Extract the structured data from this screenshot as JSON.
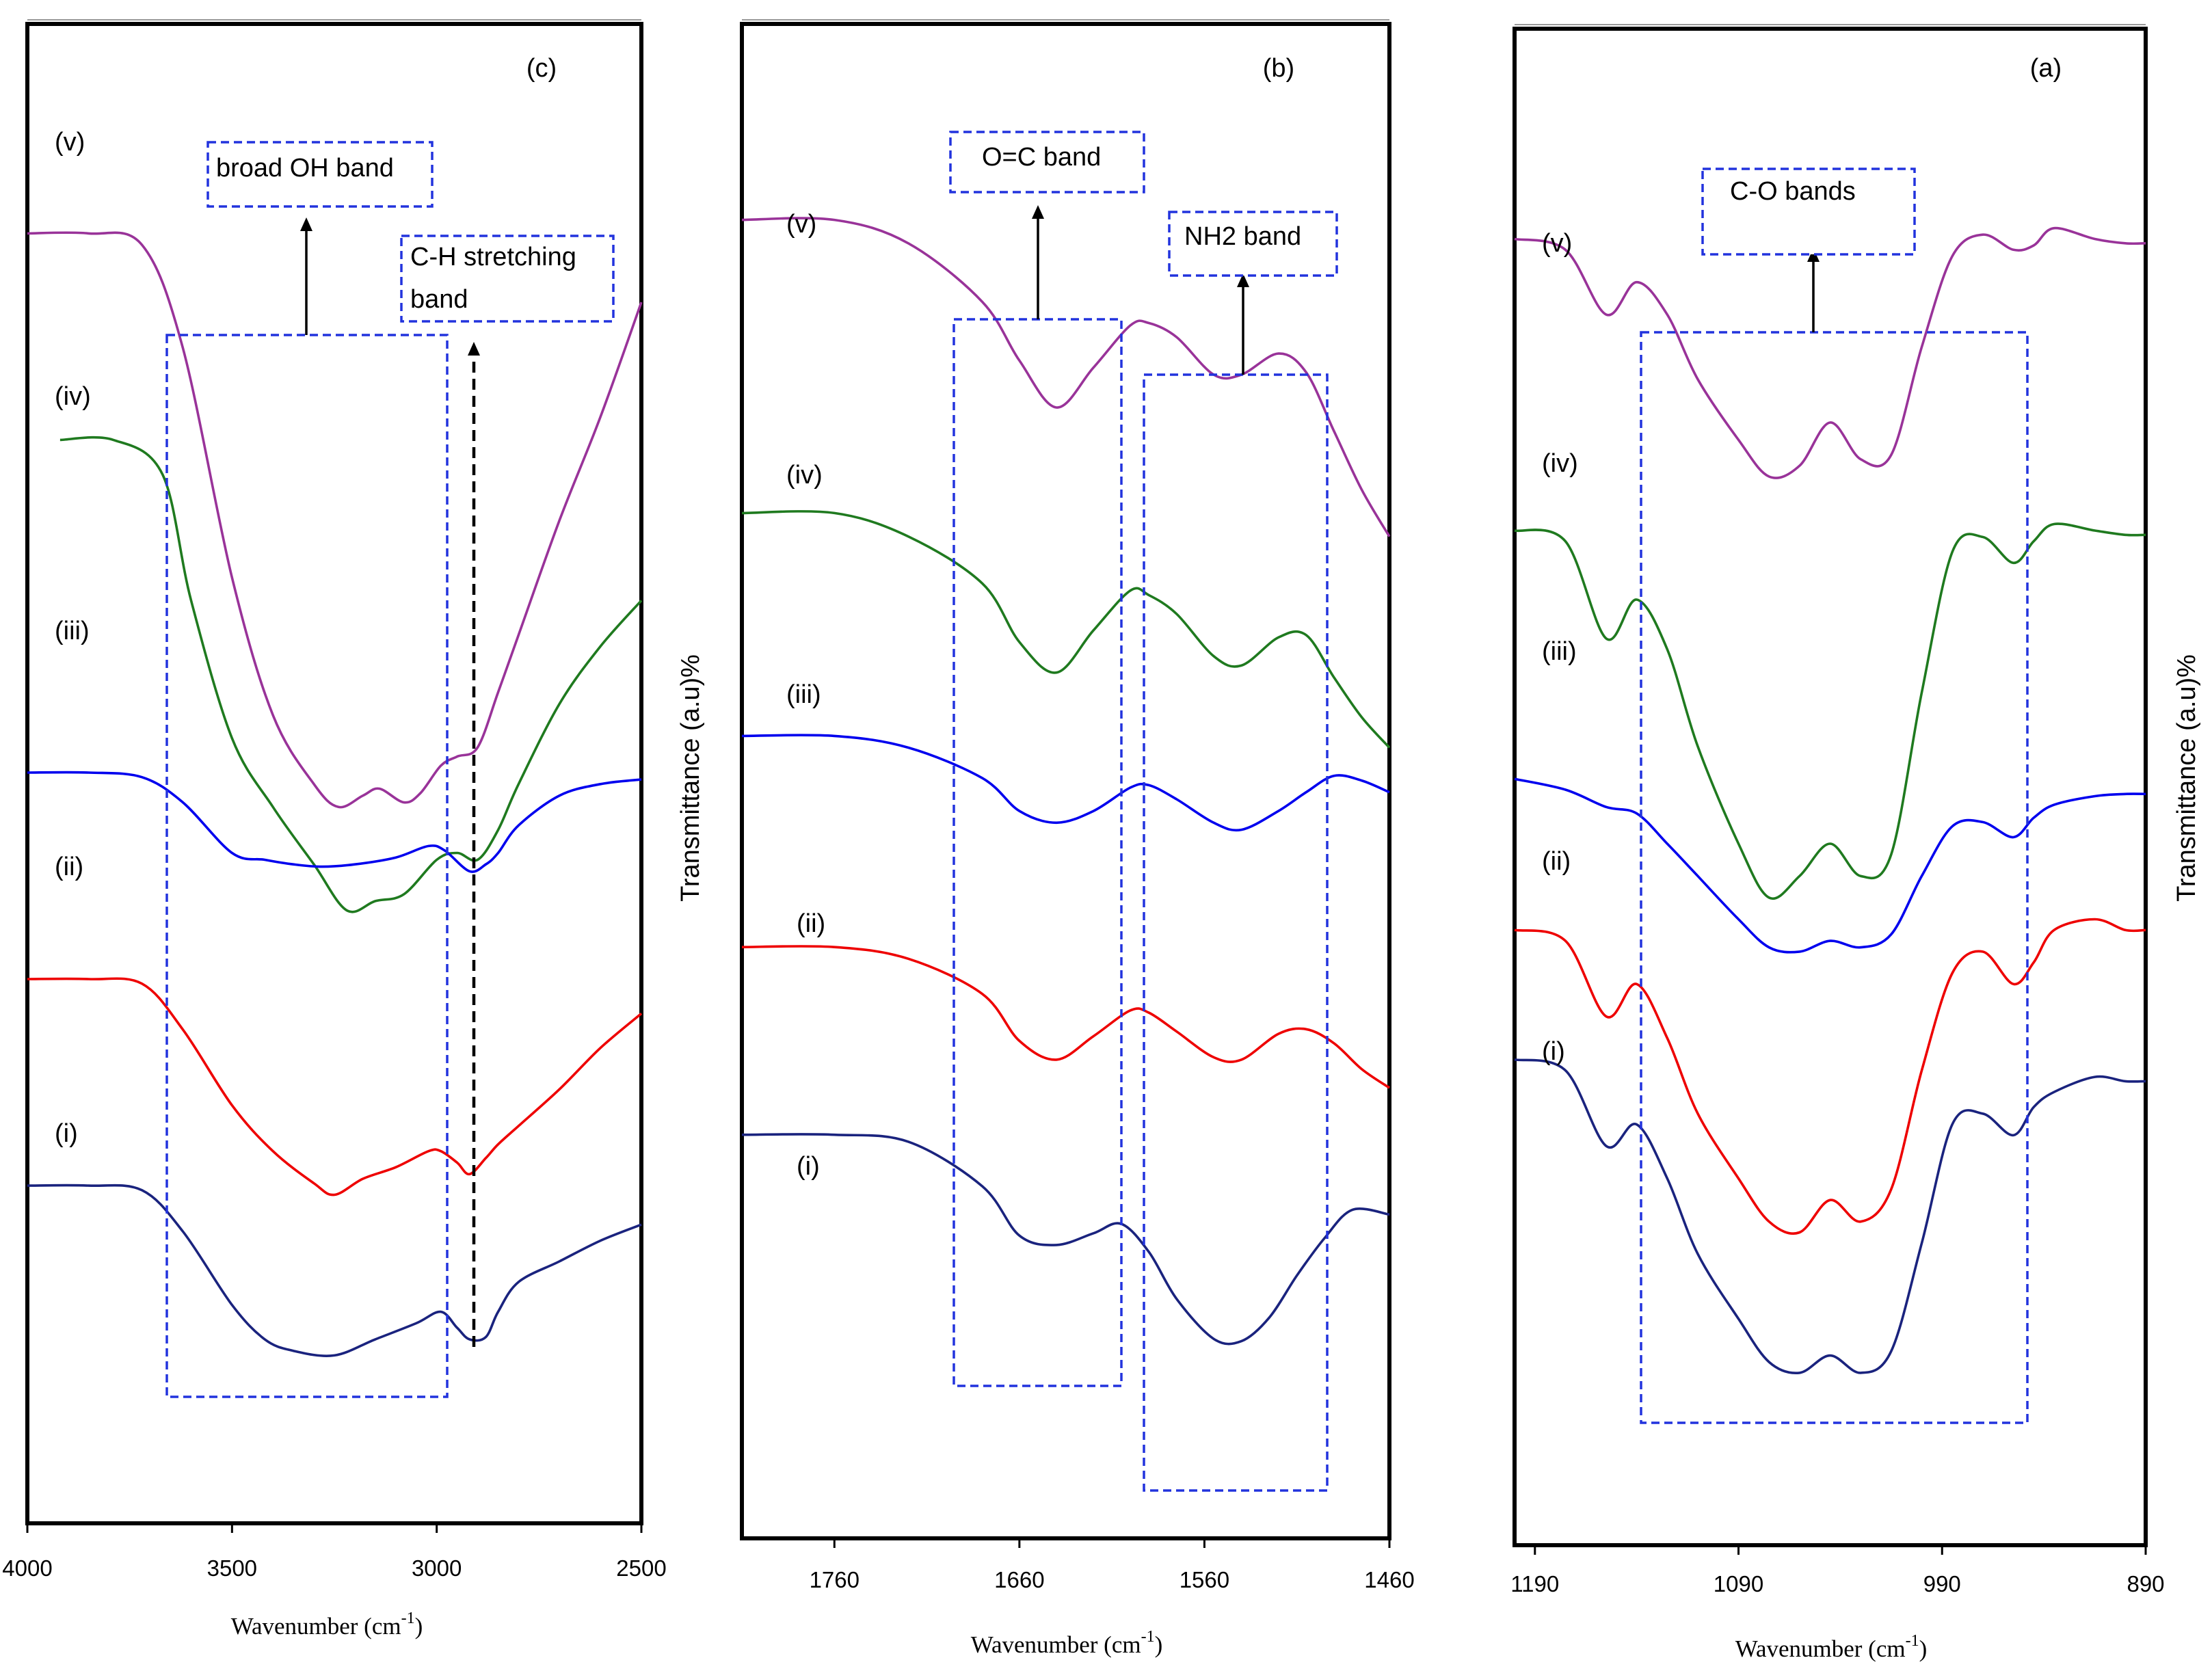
{
  "chart_data": [
    {
      "type": "line",
      "panel_label": "(c)",
      "xlabel": "Wavenumber (cm",
      "xlabel_sup": "-1",
      "xlabel_close": ")",
      "ylabel": "",
      "xlim": [
        4000,
        2500
      ],
      "x_reversed": true,
      "x_ticks": [
        4000,
        3500,
        3000,
        2500
      ],
      "y_ticks_shown": false,
      "grid": false,
      "series": [
        {
          "name": "(v)",
          "color": "#993399",
          "x": [
            4000,
            3850,
            3720,
            3620,
            3500,
            3400,
            3300,
            3240,
            3180,
            3140,
            3080,
            3040,
            2990,
            2950,
            2900,
            2850,
            2800,
            2700,
            2600,
            2500
          ],
          "y": [
            5.3,
            5.3,
            5.25,
            4.8,
            3.8,
            3.2,
            2.9,
            2.8,
            2.85,
            2.88,
            2.82,
            2.86,
            2.98,
            3.02,
            3.06,
            3.3,
            3.55,
            4.05,
            4.5,
            5.0
          ]
        },
        {
          "name": "(iv)",
          "color": "#1f7a1f",
          "x": [
            3920,
            3790,
            3670,
            3600,
            3500,
            3400,
            3300,
            3220,
            3150,
            3080,
            3000,
            2950,
            2900,
            2850,
            2800,
            2700,
            2600,
            2500
          ],
          "y": [
            4.4,
            4.4,
            4.25,
            3.7,
            3.1,
            2.8,
            2.55,
            2.35,
            2.39,
            2.42,
            2.57,
            2.6,
            2.57,
            2.7,
            2.9,
            3.25,
            3.5,
            3.7
          ]
        },
        {
          "name": "(iii)",
          "color": "#0000ee",
          "x": [
            4000,
            3850,
            3720,
            3620,
            3500,
            3420,
            3350,
            3280,
            3200,
            3100,
            3020,
            2980,
            2920,
            2880,
            2850,
            2800,
            2700,
            2600,
            2500
          ],
          "y": [
            2.95,
            2.95,
            2.93,
            2.82,
            2.6,
            2.57,
            2.55,
            2.54,
            2.55,
            2.58,
            2.63,
            2.61,
            2.52,
            2.55,
            2.6,
            2.72,
            2.85,
            2.9,
            2.92
          ]
        },
        {
          "name": "(ii)",
          "color": "#ee0000",
          "x": [
            4000,
            3850,
            3720,
            3620,
            3500,
            3400,
            3300,
            3250,
            3180,
            3100,
            3020,
            2990,
            2950,
            2920,
            2880,
            2850,
            2800,
            2700,
            2600,
            2500
          ],
          "y": [
            2.05,
            2.05,
            2.03,
            1.83,
            1.5,
            1.3,
            1.16,
            1.11,
            1.18,
            1.23,
            1.3,
            1.3,
            1.25,
            1.2,
            1.27,
            1.33,
            1.41,
            1.57,
            1.75,
            1.9
          ]
        },
        {
          "name": "(i)",
          "color": "#1a237e",
          "x": [
            4000,
            3850,
            3720,
            3620,
            3500,
            3420,
            3350,
            3250,
            3150,
            3050,
            2990,
            2950,
            2920,
            2880,
            2850,
            2800,
            2700,
            2600,
            2500
          ],
          "y": [
            1.15,
            1.15,
            1.13,
            0.95,
            0.63,
            0.48,
            0.43,
            0.41,
            0.48,
            0.55,
            0.6,
            0.53,
            0.48,
            0.49,
            0.6,
            0.73,
            0.82,
            0.91,
            0.98
          ]
        }
      ],
      "annotations": [
        {
          "text": "broad OH band"
        },
        {
          "text": "C-H stretching",
          "text2": "band"
        }
      ]
    },
    {
      "type": "line",
      "panel_label": "(b)",
      "xlabel": "Wavenumber (cm",
      "xlabel_sup": "-1",
      "xlabel_close": ")",
      "ylabel": "Transmittance (a.u)%",
      "xlim": [
        1810,
        1460
      ],
      "x_reversed": true,
      "x_ticks": [
        1760,
        1660,
        1560,
        1460
      ],
      "y_ticks_shown": false,
      "grid": false,
      "series": [
        {
          "name": "(v)",
          "color": "#993399",
          "x": [
            1810,
            1760,
            1720,
            1680,
            1660,
            1640,
            1620,
            1600,
            1590,
            1575,
            1555,
            1540,
            1520,
            1505,
            1490,
            1475,
            1460
          ],
          "y": [
            5.5,
            5.5,
            5.4,
            5.15,
            4.9,
            4.7,
            4.87,
            5.05,
            5.06,
            5.0,
            4.84,
            4.84,
            4.93,
            4.85,
            4.6,
            4.35,
            4.15
          ]
        },
        {
          "name": "(iv)",
          "color": "#1f7a1f",
          "x": [
            1810,
            1760,
            1720,
            1680,
            1660,
            1640,
            1620,
            1600,
            1590,
            1575,
            1555,
            1540,
            1520,
            1505,
            1490,
            1475,
            1460
          ],
          "y": [
            4.25,
            4.25,
            4.15,
            3.95,
            3.7,
            3.57,
            3.75,
            3.92,
            3.9,
            3.82,
            3.64,
            3.6,
            3.72,
            3.73,
            3.55,
            3.38,
            3.25
          ]
        },
        {
          "name": "(iii)",
          "color": "#0000ee",
          "x": [
            1810,
            1760,
            1720,
            1680,
            1660,
            1640,
            1620,
            1600,
            1590,
            1575,
            1555,
            1540,
            1520,
            1505,
            1490,
            1475,
            1460
          ],
          "y": [
            3.3,
            3.3,
            3.25,
            3.12,
            2.98,
            2.93,
            2.98,
            3.08,
            3.09,
            3.03,
            2.93,
            2.9,
            2.98,
            3.06,
            3.13,
            3.11,
            3.06
          ]
        },
        {
          "name": "(ii)",
          "color": "#ee0000",
          "x": [
            1810,
            1760,
            1720,
            1680,
            1660,
            1640,
            1620,
            1600,
            1590,
            1575,
            1555,
            1540,
            1520,
            1505,
            1490,
            1475,
            1460
          ],
          "y": [
            2.4,
            2.4,
            2.35,
            2.2,
            2.0,
            1.92,
            2.02,
            2.13,
            2.12,
            2.04,
            1.93,
            1.92,
            2.03,
            2.05,
            1.99,
            1.88,
            1.8
          ]
        },
        {
          "name": "(i)",
          "color": "#1a237e",
          "x": [
            1810,
            1760,
            1720,
            1680,
            1660,
            1640,
            1620,
            1605,
            1590,
            1575,
            1555,
            1540,
            1525,
            1510,
            1495,
            1480,
            1460
          ],
          "y": [
            1.6,
            1.6,
            1.57,
            1.38,
            1.17,
            1.13,
            1.18,
            1.22,
            1.1,
            0.9,
            0.73,
            0.72,
            0.82,
            1.0,
            1.16,
            1.28,
            1.26
          ]
        }
      ],
      "annotations": [
        {
          "text": "O=C band"
        },
        {
          "text": "NH2 band"
        }
      ]
    },
    {
      "type": "line",
      "panel_label": "(a)",
      "xlabel": "Wavenumber (cm",
      "xlabel_sup": "-1",
      "xlabel_close": ")",
      "ylabel": "Transmittance (a.u)%",
      "xlim": [
        1200,
        890
      ],
      "x_reversed": true,
      "x_ticks": [
        1190,
        1090,
        990,
        890
      ],
      "y_ticks_shown": false,
      "grid": false,
      "series": [
        {
          "name": "(v)",
          "color": "#993399",
          "x": [
            1200,
            1175,
            1155,
            1140,
            1125,
            1110,
            1090,
            1075,
            1060,
            1045,
            1030,
            1015,
            1000,
            985,
            970,
            955,
            945,
            935,
            915,
            900,
            890
          ],
          "y": [
            5.7,
            5.65,
            5.35,
            5.5,
            5.35,
            5.05,
            4.77,
            4.6,
            4.65,
            4.85,
            4.68,
            4.7,
            5.2,
            5.62,
            5.72,
            5.65,
            5.67,
            5.75,
            5.7,
            5.68,
            5.68
          ]
        },
        {
          "name": "(iv)",
          "color": "#1f7a1f",
          "x": [
            1200,
            1175,
            1155,
            1140,
            1125,
            1110,
            1090,
            1075,
            1060,
            1045,
            1030,
            1015,
            1000,
            985,
            970,
            955,
            945,
            935,
            915,
            900,
            890
          ],
          "y": [
            4.35,
            4.3,
            3.85,
            4.03,
            3.8,
            3.35,
            2.9,
            2.65,
            2.75,
            2.9,
            2.75,
            2.85,
            3.6,
            4.25,
            4.32,
            4.2,
            4.3,
            4.38,
            4.35,
            4.33,
            4.33
          ]
        },
        {
          "name": "(iii)",
          "color": "#0000ee",
          "x": [
            1200,
            1175,
            1155,
            1140,
            1125,
            1110,
            1090,
            1075,
            1060,
            1045,
            1030,
            1015,
            1000,
            985,
            970,
            955,
            945,
            935,
            915,
            900,
            890
          ],
          "y": [
            3.2,
            3.15,
            3.07,
            3.04,
            2.9,
            2.75,
            2.55,
            2.42,
            2.4,
            2.45,
            2.42,
            2.48,
            2.75,
            2.98,
            3.0,
            2.93,
            3.02,
            3.08,
            3.12,
            3.13,
            3.13
          ]
        },
        {
          "name": "(ii)",
          "color": "#ee0000",
          "x": [
            1200,
            1175,
            1155,
            1140,
            1125,
            1110,
            1090,
            1075,
            1060,
            1045,
            1030,
            1015,
            1000,
            985,
            970,
            955,
            945,
            935,
            915,
            900,
            890
          ],
          "y": [
            2.5,
            2.45,
            2.1,
            2.25,
            2.0,
            1.65,
            1.35,
            1.15,
            1.1,
            1.25,
            1.15,
            1.3,
            1.85,
            2.3,
            2.4,
            2.25,
            2.35,
            2.5,
            2.55,
            2.5,
            2.5
          ]
        },
        {
          "name": "(i)",
          "color": "#1a237e",
          "x": [
            1200,
            1175,
            1155,
            1140,
            1125,
            1110,
            1090,
            1075,
            1060,
            1045,
            1030,
            1015,
            1000,
            985,
            970,
            955,
            945,
            935,
            915,
            900,
            890
          ],
          "y": [
            1.9,
            1.85,
            1.5,
            1.6,
            1.35,
            1.0,
            0.7,
            0.5,
            0.45,
            0.53,
            0.45,
            0.55,
            1.05,
            1.6,
            1.65,
            1.55,
            1.68,
            1.75,
            1.82,
            1.8,
            1.8
          ]
        }
      ],
      "annotations": [
        {
          "text": "C-O bands"
        }
      ]
    }
  ]
}
